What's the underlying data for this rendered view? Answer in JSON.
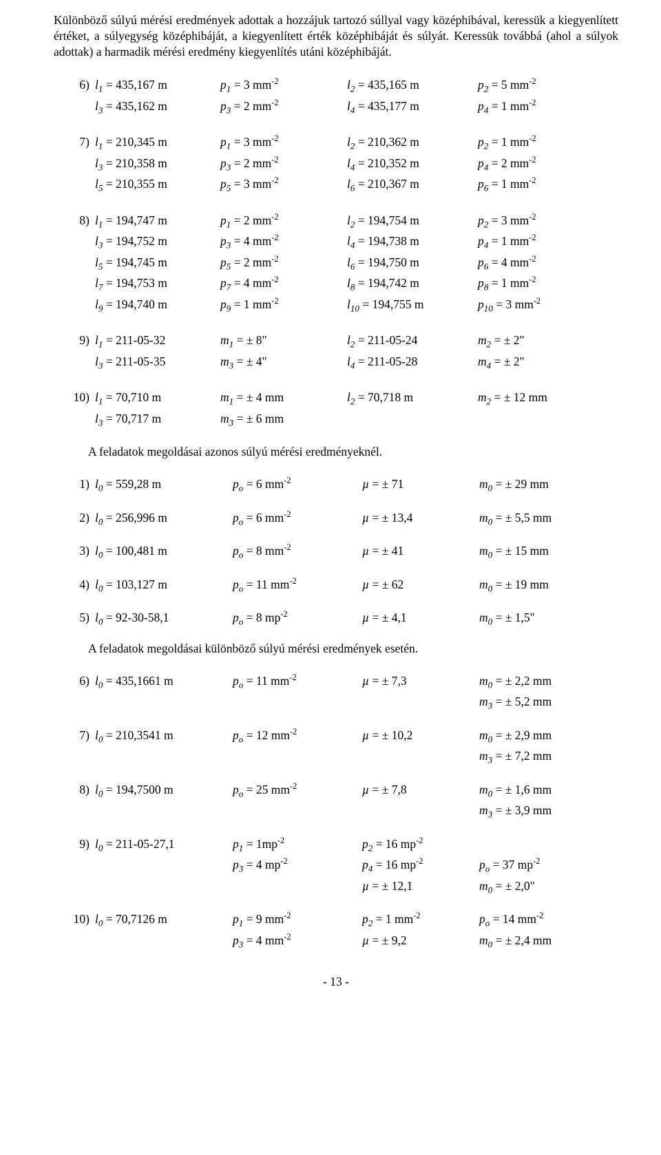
{
  "intro": "Különböző súlyú mérési eredmények adottak a hozzájuk tartozó súllyal vagy középhibával, keressük a kiegyenlített értéket, a súlyegység középhibáját, a kiegyenlített érték középhibáját és súlyát. Keressük továbbá (ahol a súlyok adottak) a harmadik mérési eredmény kiegyenlítés utáni középhibáját.",
  "problems": [
    {
      "num": "6)",
      "lines": [
        [
          "<i>l<sub>1</sub></i> = 435,167 m",
          "<i>p<sub>1</sub></i> = 3 mm<sup>-2</sup>",
          "<i>l<sub>2</sub></i> = 435,165 m",
          "<i>p<sub>2</sub></i> = 5 mm<sup>-2</sup>"
        ],
        [
          "<i>l<sub>3</sub></i> = 435,162 m",
          "<i>p<sub>3</sub></i> = 2 mm<sup>-2</sup>",
          "<i>l<sub>4</sub></i> = 435,177 m",
          "<i>p<sub>4</sub></i> = 1 mm<sup>-2</sup>"
        ]
      ]
    },
    {
      "num": "7)",
      "lines": [
        [
          "<i>l<sub>1</sub></i> = 210,345 m",
          "<i>p<sub>1</sub></i> = 3 mm<sup>-2</sup>",
          "<i>l<sub>2</sub></i> = 210,362 m",
          "<i>p<sub>2</sub></i> = 1 mm<sup>-2</sup>"
        ],
        [
          "<i>l<sub>3</sub></i> = 210,358 m",
          "<i>p<sub>3</sub></i> = 2 mm<sup>-2</sup>",
          "<i>l<sub>4</sub></i> = 210,352 m",
          "<i>p<sub>4</sub></i> = 2 mm<sup>-2</sup>"
        ],
        [
          "<i>l<sub>5</sub></i> = 210,355 m",
          "<i>p<sub>5</sub></i> = 3 mm<sup>-2</sup>",
          "<i>l<sub>6</sub></i> = 210,367 m",
          "<i>p<sub>6</sub></i> = 1 mm<sup>-2</sup>"
        ]
      ]
    },
    {
      "num": "8)",
      "lines": [
        [
          "<i>l<sub>1</sub></i> = 194,747 m",
          "<i>p<sub>1</sub></i> = 2 mm<sup>-2</sup>",
          "<i>l<sub>2</sub></i> = 194,754 m",
          "<i>p<sub>2</sub></i>  = 3 mm<sup>-2</sup>"
        ],
        [
          "<i>l<sub>3</sub></i> = 194,752 m",
          "<i>p<sub>3</sub></i> = 4 mm<sup>-2</sup>",
          "<i>l<sub>4</sub></i> = 194,738 m",
          "<i>p<sub>4</sub></i>  = 1 mm<sup>-2</sup>"
        ],
        [
          "<i>l<sub>5</sub></i> = 194,745 m",
          "<i>p<sub>5</sub></i> = 2 mm<sup>-2</sup>",
          "<i>l<sub>6</sub></i> = 194,750 m",
          "<i>p<sub>6</sub></i>  = 4 mm<sup>-2</sup>"
        ],
        [
          "<i>l<sub>7</sub></i> = 194,753 m",
          "<i>p<sub>7</sub></i> = 4 mm<sup>-2</sup>",
          "<i>l<sub>8</sub></i> = 194,742 m",
          "<i>p<sub>8</sub></i>  = 1 mm<sup>-2</sup>"
        ],
        [
          "<i>l<sub>9</sub></i> = 194,740 m",
          "<i>p<sub>9</sub></i> = 1 mm<sup>-2</sup>",
          "<i>l<sub>10</sub></i> = 194,755 m",
          "<i>p<sub>10</sub></i> = 3 mm<sup>-2</sup>"
        ]
      ]
    },
    {
      "num": "9)",
      "lines": [
        [
          "<i>l<sub>1</sub></i> = 211-05-32",
          "<i>m<sub>1</sub></i> = ± 8\"",
          "<i>l<sub>2</sub></i> = 211-05-24",
          "<i>m<sub>2</sub></i> = ± 2\""
        ],
        [
          "<i>l<sub>3</sub></i> = 211-05-35",
          "<i>m<sub>3</sub></i> = ± 4\"",
          "<i>l<sub>4</sub></i> = 211-05-28",
          "<i>m<sub>4</sub></i> = ± 2\""
        ]
      ]
    },
    {
      "num": "10)",
      "lines": [
        [
          "<i>l<sub>1</sub></i> = 70,710 m",
          "<i>m<sub>1</sub></i> = ± 4 mm",
          "<i>l<sub>2</sub></i> = 70,718 m",
          "<i>m<sub>2</sub></i> = ± 12 mm"
        ],
        [
          "<i>l<sub>3</sub></i> = 70,717 m",
          "<i>m<sub>3</sub></i> = ± 6 mm",
          "",
          ""
        ]
      ]
    }
  ],
  "section1_title": "A feladatok megoldásai azonos súlyú mérési eredményeknél.",
  "solutions1": [
    {
      "num": "1)",
      "lines": [
        [
          "<i>l<sub>0</sub></i>  = 559,28 m",
          "<i>p<sub>o</sub></i> = 6 mm<sup>-2</sup>",
          "<i>µ</i>  = ± 71",
          "<i>m<sub>0</sub></i> = ± 29 mm"
        ]
      ]
    },
    {
      "num": "2)",
      "lines": [
        [
          "<i>l<sub>0</sub></i>  = 256,996 m",
          "<i>p<sub>o</sub></i> = 6 mm<sup>-2</sup>",
          "<i>µ</i> = ± 13,4",
          "<i>m<sub>0</sub></i> = ± 5,5 mm"
        ]
      ]
    },
    {
      "num": "3)",
      "lines": [
        [
          "<i>l<sub>0</sub></i>  = 100,481 m",
          "<i>p<sub>o</sub></i> = 8 mm<sup>-2</sup>",
          "<i>µ</i> = ± 41",
          "<i>m<sub>0</sub></i> = ± 15 mm"
        ]
      ]
    },
    {
      "num": "4)",
      "lines": [
        [
          "<i>l<sub>0</sub></i>  = 103,127 m",
          "<i>p<sub>o</sub></i> = 11 mm<sup>-2</sup>",
          "<i>µ</i> = ± 62",
          "<i>m<sub>0</sub></i> = ± 19 mm"
        ]
      ]
    },
    {
      "num": "5)",
      "lines": [
        [
          "<i>l<sub>0</sub></i>  = 92-30-58,1",
          "<i>p<sub>o</sub></i> = 8  mp<sup>-2</sup>",
          "<i>µ</i> = ± 4,1",
          "<i>m<sub>0</sub></i> = ± 1,5\""
        ]
      ]
    }
  ],
  "section2_title": "A feladatok megoldásai különböző  súlyú mérési eredmények esetén.",
  "solutions2": [
    {
      "num": "6)",
      "lines": [
        [
          "<i>l<sub>0</sub></i>  = 435,1661 m",
          "<i>p<sub>o</sub></i> = 11 mm<sup>-2</sup>",
          "<i>µ</i> = ± 7,3",
          "<i>m<sub>0</sub></i> = ± 2,2 mm"
        ],
        [
          "",
          "",
          "",
          "<i>m<sub>3</sub></i> = ± 5,2 mm"
        ]
      ]
    },
    {
      "num": "7)",
      "lines": [
        [
          "<i>l<sub>0</sub></i>  = 210,3541 m",
          "<i>p<sub>o</sub></i> = 12 mm<sup>-2</sup>",
          "<i>µ</i> = ± 10,2",
          "<i>m<sub>0</sub></i> = ± 2,9 mm"
        ],
        [
          "",
          "",
          "",
          "<i>m<sub>3</sub></i> = ± 7,2 mm"
        ]
      ]
    },
    {
      "num": "8)",
      "lines": [
        [
          "<i>l<sub>0</sub></i>  = 194,7500 m",
          "<i>p<sub>o</sub></i> = 25 mm<sup>-2</sup>",
          "<i>µ</i> = ± 7,8",
          "<i>m<sub>0</sub></i> = ± 1,6 mm"
        ],
        [
          "",
          "",
          "",
          "<i>m<sub>3</sub></i> = ± 3,9 mm"
        ]
      ]
    },
    {
      "num": "9)",
      "lines": [
        [
          "<i>l<sub>0</sub></i>  = 211-05-27,1",
          "<i>p<sub>1</sub></i> =  1mp<sup>-2</sup>",
          "<i>p<sub>2</sub></i> = 16 mp<sup>-2</sup>",
          ""
        ],
        [
          "",
          "<i>p<sub>3</sub></i> =  4 mp<sup>-2</sup>",
          "<i>p<sub>4</sub></i> = 16 mp<sup>-2</sup>",
          "<i>p<sub>o</sub></i> = 37 mp<sup>-2</sup>"
        ],
        [
          "",
          "",
          "<i>µ</i> = ± 12,1",
          "<i>m<sub>0</sub></i> = ± 2,0\""
        ]
      ]
    },
    {
      "num": "10)",
      "lines": [
        [
          "<i>l<sub>0</sub></i>  = 70,7126 m",
          "<i>p<sub>1</sub></i> =   9 mm<sup>-2</sup>",
          "<i>p<sub>2</sub></i> = 1 mm<sup>-2</sup>",
          "<i>p<sub>o</sub></i> = 14 mm<sup>-2</sup>"
        ],
        [
          "",
          "<i>p<sub>3</sub></i> =   4 mm<sup>-2</sup>",
          "<i>µ</i> = ± 9,2",
          "<i>m<sub>0</sub></i> = ± 2,4 mm"
        ]
      ]
    }
  ],
  "footer": "- 13 -"
}
